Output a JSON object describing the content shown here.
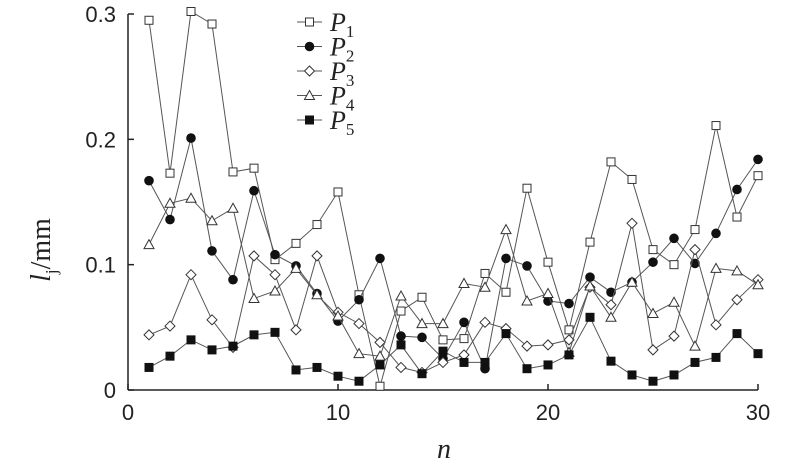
{
  "chart_data": {
    "type": "line",
    "xlabel": "n",
    "ylabel": "l",
    "ylabel_sub": "j",
    "ylabel_unit": "/mm",
    "xlim": [
      0,
      30
    ],
    "ylim": [
      0,
      0.3
    ],
    "x_ticks": [
      "0",
      "10",
      "20",
      "30"
    ],
    "y_ticks": [
      "0",
      "0.1",
      "0.2",
      "0.3"
    ],
    "grid": false,
    "legend_position": "top-center",
    "x": [
      1,
      2,
      3,
      4,
      5,
      6,
      7,
      8,
      9,
      10,
      11,
      12,
      13,
      14,
      15,
      16,
      17,
      18,
      19,
      20,
      21,
      22,
      23,
      24,
      25,
      26,
      27,
      28,
      29,
      30
    ],
    "series": [
      {
        "name": "P",
        "sub": "1",
        "marker": "square-open",
        "values": [
          0.295,
          0.173,
          0.302,
          0.292,
          0.174,
          0.177,
          0.104,
          0.117,
          0.132,
          0.158,
          0.076,
          0.003,
          0.063,
          0.074,
          0.04,
          0.041,
          0.093,
          0.078,
          0.161,
          0.102,
          0.048,
          0.118,
          0.182,
          0.168,
          0.112,
          0.1,
          0.128,
          0.211,
          0.138,
          0.171
        ]
      },
      {
        "name": "P",
        "sub": "2",
        "marker": "circle-filled",
        "values": [
          0.167,
          0.136,
          0.201,
          0.111,
          0.088,
          0.159,
          0.108,
          0.099,
          0.077,
          0.055,
          0.072,
          0.105,
          0.043,
          0.042,
          0.025,
          0.054,
          0.017,
          0.105,
          0.099,
          0.071,
          0.069,
          0.09,
          0.078,
          0.086,
          0.102,
          0.121,
          0.101,
          0.125,
          0.16,
          0.184
        ]
      },
      {
        "name": "P",
        "sub": "3",
        "marker": "diamond-open",
        "values": [
          0.044,
          0.051,
          0.092,
          0.056,
          0.034,
          0.107,
          0.092,
          0.048,
          0.107,
          0.062,
          0.053,
          0.038,
          0.018,
          0.014,
          0.022,
          0.028,
          0.054,
          0.049,
          0.035,
          0.036,
          0.04,
          0.082,
          0.068,
          0.133,
          0.032,
          0.043,
          0.112,
          0.052,
          0.072,
          0.088
        ]
      },
      {
        "name": "P",
        "sub": "4",
        "marker": "triangle-open",
        "values": [
          0.116,
          0.149,
          0.153,
          0.135,
          0.145,
          0.073,
          0.079,
          0.097,
          0.076,
          0.059,
          0.029,
          0.027,
          0.075,
          0.053,
          0.053,
          0.085,
          0.082,
          0.128,
          0.071,
          0.077,
          0.03,
          0.083,
          0.058,
          0.086,
          0.061,
          0.07,
          0.035,
          0.097,
          0.095,
          0.084
        ]
      },
      {
        "name": "P",
        "sub": "5",
        "marker": "square-filled",
        "values": [
          0.018,
          0.027,
          0.04,
          0.032,
          0.035,
          0.044,
          0.046,
          0.016,
          0.018,
          0.011,
          0.007,
          0.02,
          0.036,
          0.013,
          0.031,
          0.022,
          0.022,
          0.045,
          0.017,
          0.02,
          0.028,
          0.058,
          0.023,
          0.012,
          0.007,
          0.012,
          0.022,
          0.026,
          0.045,
          0.029
        ]
      }
    ]
  }
}
